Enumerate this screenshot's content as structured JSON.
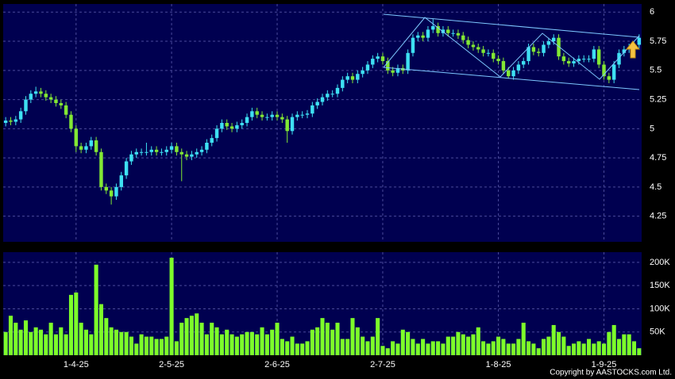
{
  "chart_data": {
    "type": "candlestick",
    "categories": [
      null,
      null,
      null,
      null,
      null,
      null,
      null,
      null,
      null,
      null,
      null,
      null,
      null,
      null,
      "1-4-25",
      null,
      null,
      null,
      null,
      null,
      null,
      null,
      null,
      null,
      null,
      null,
      null,
      null,
      null,
      null,
      null,
      null,
      null,
      "2-5-25",
      null,
      null,
      null,
      null,
      null,
      null,
      null,
      null,
      null,
      null,
      null,
      null,
      null,
      null,
      null,
      null,
      null,
      null,
      null,
      null,
      "2-6-25",
      null,
      null,
      null,
      null,
      null,
      null,
      null,
      null,
      null,
      null,
      null,
      null,
      null,
      null,
      null,
      null,
      null,
      null,
      null,
      null,
      "2-7-25",
      null,
      null,
      null,
      null,
      null,
      null,
      null,
      null,
      null,
      null,
      null,
      null,
      null,
      null,
      null,
      null,
      null,
      null,
      null,
      null,
      null,
      null,
      "1-8-25",
      null,
      null,
      null,
      null,
      null,
      null,
      null,
      null,
      null,
      null,
      null,
      null,
      null,
      null,
      null,
      null,
      null,
      null,
      null,
      null,
      "1-9-25",
      null,
      null,
      null,
      null,
      null,
      null,
      null
    ],
    "open": [
      5.05,
      5.07,
      5.06,
      5.08,
      5.15,
      5.25,
      5.3,
      5.32,
      5.3,
      5.27,
      5.25,
      5.22,
      5.2,
      5.12,
      5.0,
      4.85,
      4.82,
      4.85,
      4.9,
      4.8,
      4.5,
      4.47,
      4.42,
      4.5,
      4.6,
      4.72,
      4.78,
      4.8,
      4.8,
      4.8,
      4.82,
      4.8,
      4.8,
      4.82,
      4.85,
      4.8,
      4.78,
      4.76,
      4.78,
      4.8,
      4.82,
      4.88,
      4.92,
      5.0,
      5.05,
      5.02,
      5.0,
      5.03,
      5.05,
      5.1,
      5.15,
      5.12,
      5.1,
      5.1,
      5.12,
      5.1,
      5.08,
      4.98,
      5.1,
      5.12,
      5.12,
      5.13,
      5.2,
      5.23,
      5.27,
      5.3,
      5.3,
      5.35,
      5.42,
      5.45,
      5.42,
      5.47,
      5.5,
      5.55,
      5.6,
      5.62,
      5.58,
      5.5,
      5.48,
      5.52,
      5.5,
      5.65,
      5.78,
      5.8,
      5.78,
      5.85,
      5.88,
      5.82,
      5.85,
      5.82,
      5.82,
      5.8,
      5.76,
      5.72,
      5.7,
      5.68,
      5.65,
      5.65,
      5.6,
      5.58,
      5.5,
      5.45,
      5.5,
      5.55,
      5.58,
      5.7,
      5.66,
      5.65,
      5.72,
      5.75,
      5.78,
      5.62,
      5.58,
      5.56,
      5.58,
      5.6,
      5.6,
      5.6,
      5.68,
      5.55,
      5.45,
      5.42,
      5.55,
      5.65,
      5.68,
      5.7,
      5.72
    ],
    "high": [
      5.1,
      5.1,
      5.11,
      5.18,
      5.28,
      5.33,
      5.36,
      5.35,
      5.33,
      5.3,
      5.28,
      5.25,
      5.23,
      5.15,
      5.03,
      4.88,
      4.88,
      4.93,
      4.93,
      4.83,
      4.53,
      4.5,
      4.53,
      4.63,
      4.75,
      4.81,
      4.83,
      4.83,
      4.88,
      4.85,
      4.85,
      4.83,
      4.85,
      4.88,
      4.88,
      4.83,
      4.81,
      4.81,
      4.83,
      4.85,
      4.91,
      4.95,
      5.03,
      5.08,
      5.08,
      5.05,
      5.06,
      5.08,
      5.13,
      5.18,
      5.18,
      5.15,
      5.13,
      5.15,
      5.15,
      5.13,
      5.11,
      5.13,
      5.15,
      5.15,
      5.16,
      5.23,
      5.26,
      5.3,
      5.33,
      5.33,
      5.38,
      5.45,
      5.48,
      5.48,
      5.5,
      5.53,
      5.58,
      5.63,
      5.65,
      5.65,
      5.61,
      5.53,
      5.55,
      5.55,
      5.68,
      5.81,
      5.83,
      5.83,
      5.88,
      5.94,
      5.91,
      5.88,
      5.88,
      5.85,
      5.85,
      5.83,
      5.79,
      5.75,
      5.73,
      5.71,
      5.68,
      5.68,
      5.63,
      5.61,
      5.53,
      5.53,
      5.58,
      5.61,
      5.73,
      5.73,
      5.69,
      5.75,
      5.78,
      5.81,
      5.81,
      5.65,
      5.61,
      5.61,
      5.63,
      5.63,
      5.63,
      5.71,
      5.71,
      5.58,
      5.48,
      5.58,
      5.68,
      5.71,
      5.73,
      5.75,
      5.81
    ],
    "low": [
      5.02,
      5.03,
      5.03,
      5.05,
      5.12,
      5.22,
      5.27,
      5.27,
      5.24,
      5.22,
      5.19,
      5.17,
      5.09,
      4.97,
      4.8,
      4.79,
      4.79,
      4.82,
      4.77,
      4.47,
      4.44,
      4.35,
      4.39,
      4.47,
      4.57,
      4.69,
      4.75,
      4.77,
      4.77,
      4.77,
      4.77,
      4.77,
      4.77,
      4.79,
      4.77,
      4.55,
      4.73,
      4.73,
      4.75,
      4.77,
      4.79,
      4.85,
      4.89,
      4.97,
      4.99,
      4.97,
      4.97,
      5.0,
      5.02,
      5.07,
      5.09,
      5.07,
      5.07,
      5.07,
      5.07,
      5.05,
      4.88,
      4.95,
      5.07,
      5.09,
      5.09,
      5.1,
      5.17,
      5.2,
      5.24,
      5.27,
      5.27,
      5.32,
      5.39,
      5.39,
      5.39,
      5.44,
      5.47,
      5.52,
      5.57,
      5.55,
      5.47,
      5.45,
      5.45,
      5.47,
      5.47,
      5.62,
      5.75,
      5.75,
      5.75,
      5.82,
      5.79,
      5.79,
      5.79,
      5.79,
      5.77,
      5.73,
      5.69,
      5.67,
      5.65,
      5.62,
      5.62,
      5.57,
      5.55,
      5.47,
      5.43,
      5.42,
      5.47,
      5.52,
      5.55,
      5.63,
      5.62,
      5.62,
      5.69,
      5.72,
      5.59,
      5.55,
      5.53,
      5.53,
      5.55,
      5.57,
      5.57,
      5.57,
      5.52,
      5.42,
      5.39,
      5.39,
      5.52,
      5.62,
      5.65,
      5.67,
      5.69
    ],
    "close": [
      5.07,
      5.06,
      5.08,
      5.15,
      5.25,
      5.3,
      5.32,
      5.3,
      5.27,
      5.25,
      5.22,
      5.2,
      5.12,
      5.0,
      4.85,
      4.82,
      4.85,
      4.9,
      4.8,
      4.5,
      4.47,
      4.42,
      4.5,
      4.6,
      4.72,
      4.78,
      4.8,
      4.8,
      4.8,
      4.82,
      4.8,
      4.8,
      4.82,
      4.85,
      4.8,
      4.78,
      4.76,
      4.78,
      4.8,
      4.82,
      4.88,
      4.92,
      5.0,
      5.05,
      5.02,
      5.0,
      5.03,
      5.05,
      5.1,
      5.15,
      5.12,
      5.1,
      5.1,
      5.12,
      5.1,
      5.08,
      4.98,
      5.1,
      5.12,
      5.12,
      5.13,
      5.2,
      5.23,
      5.27,
      5.3,
      5.3,
      5.35,
      5.42,
      5.45,
      5.42,
      5.47,
      5.5,
      5.55,
      5.6,
      5.62,
      5.58,
      5.5,
      5.48,
      5.52,
      5.5,
      5.65,
      5.78,
      5.8,
      5.78,
      5.85,
      5.88,
      5.82,
      5.85,
      5.82,
      5.82,
      5.8,
      5.76,
      5.72,
      5.7,
      5.68,
      5.65,
      5.65,
      5.6,
      5.58,
      5.5,
      5.45,
      5.5,
      5.55,
      5.58,
      5.7,
      5.66,
      5.65,
      5.72,
      5.75,
      5.78,
      5.62,
      5.58,
      5.56,
      5.58,
      5.6,
      5.6,
      5.6,
      5.68,
      5.55,
      5.45,
      5.42,
      5.55,
      5.65,
      5.68,
      5.7,
      5.72,
      5.78
    ],
    "volume": [
      50000,
      85000,
      70000,
      55000,
      75000,
      50000,
      60000,
      55000,
      45000,
      70000,
      45000,
      60000,
      45000,
      130000,
      135000,
      70000,
      55000,
      45000,
      195000,
      110000,
      80000,
      60000,
      55000,
      50000,
      50000,
      40000,
      25000,
      45000,
      40000,
      40000,
      35000,
      35000,
      40000,
      210000,
      30000,
      70000,
      80000,
      85000,
      90000,
      70000,
      45000,
      70000,
      60000,
      45000,
      55000,
      45000,
      40000,
      45000,
      50000,
      50000,
      45000,
      60000,
      45000,
      55000,
      70000,
      35000,
      30000,
      40000,
      25000,
      25000,
      30000,
      55000,
      60000,
      80000,
      70000,
      55000,
      70000,
      35000,
      35000,
      80000,
      60000,
      40000,
      30000,
      40000,
      80000,
      20000,
      15000,
      30000,
      25000,
      55000,
      50000,
      35000,
      25000,
      35000,
      25000,
      30000,
      30000,
      25000,
      40000,
      40000,
      50000,
      45000,
      40000,
      45000,
      60000,
      30000,
      25000,
      30000,
      40000,
      35000,
      25000,
      25000,
      35000,
      70000,
      30000,
      25000,
      15000,
      35000,
      40000,
      65000,
      50000,
      40000,
      20000,
      25000,
      30000,
      25000,
      35000,
      25000,
      30000,
      25000,
      50000,
      65000,
      35000,
      45000,
      45000,
      30000,
      15000
    ],
    "ylim": [
      4.03,
      6.07
    ],
    "yticks": [
      4.25,
      4.5,
      4.75,
      5,
      5.25,
      5.5,
      5.75,
      6
    ],
    "volume_ylim": [
      0,
      222000
    ],
    "volume_yticks": [
      {
        "value": 50000,
        "label": "50K"
      },
      {
        "value": 100000,
        "label": "100K"
      },
      {
        "value": 150000,
        "label": "150K"
      },
      {
        "value": 200000,
        "label": "200K"
      }
    ],
    "up_color": "#3ee0f2",
    "down_color": "#82e834",
    "volume_color": "#7dff2a",
    "grid": true,
    "footer": "Copyright by AASTOCKS.com Ltd."
  }
}
